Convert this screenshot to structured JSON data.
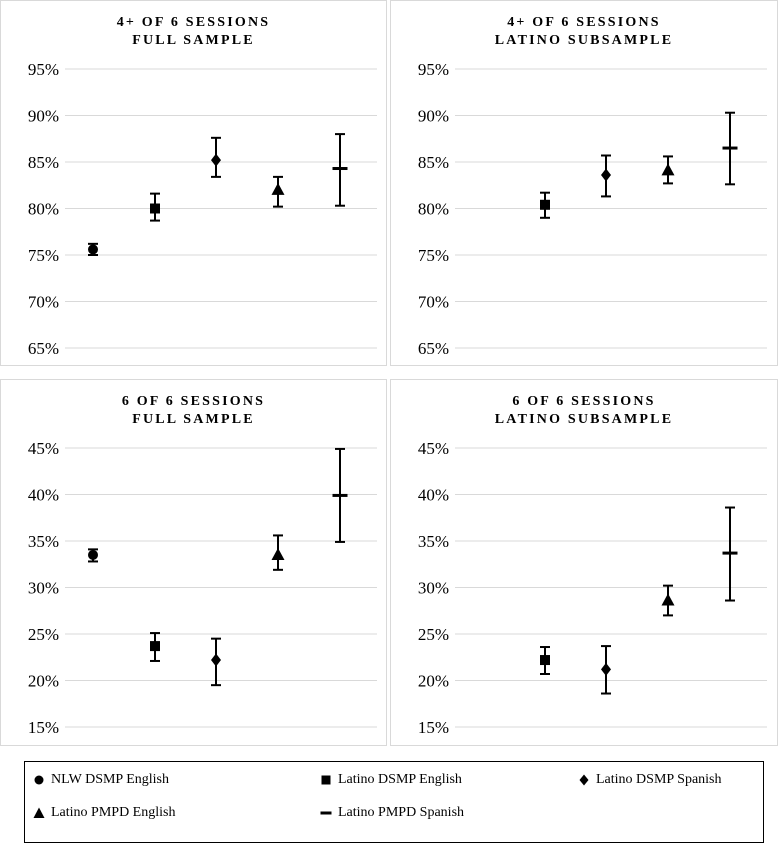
{
  "series_names": [
    "NLW DSMP English",
    "Latino DSMP English",
    "Latino DSMP Spanish",
    "Latino PMPD English",
    "Latino PMPD Spanish"
  ],
  "marker_shapes": [
    "circle",
    "square",
    "diamond",
    "triangle",
    "dash"
  ],
  "colors": {
    "marker": "#000000",
    "grid": "#d9d9d9",
    "border": "#d9d9d9",
    "legend_border": "#000000"
  },
  "chart_data": [
    {
      "type": "scatter",
      "title_line1": "4+ OF 6 SESSIONS",
      "title_line2": "FULL SAMPLE",
      "ylim": [
        65,
        95
      ],
      "yticks": [
        "95%",
        "90%",
        "85%",
        "80%",
        "75%",
        "70%",
        "65%"
      ],
      "ytick_values": [
        95,
        90,
        85,
        80,
        75,
        70,
        65
      ],
      "points": [
        {
          "series": "NLW DSMP English",
          "value": 75.6,
          "low": 75.0,
          "high": 76.2
        },
        {
          "series": "Latino DSMP English",
          "value": 80.0,
          "low": 78.7,
          "high": 81.6
        },
        {
          "series": "Latino DSMP Spanish",
          "value": 85.2,
          "low": 83.4,
          "high": 87.6
        },
        {
          "series": "Latino PMPD English",
          "value": 82.0,
          "low": 80.2,
          "high": 83.4
        },
        {
          "series": "Latino PMPD Spanish",
          "value": 84.3,
          "low": 80.3,
          "high": 88.0
        }
      ]
    },
    {
      "type": "scatter",
      "title_line1": "4+ OF 6 SESSIONS",
      "title_line2": "LATINO SUBSAMPLE",
      "ylim": [
        65,
        95
      ],
      "yticks": [
        "95%",
        "90%",
        "85%",
        "80%",
        "75%",
        "70%",
        "65%"
      ],
      "ytick_values": [
        95,
        90,
        85,
        80,
        75,
        70,
        65
      ],
      "points": [
        {
          "series": "Latino DSMP English",
          "value": 80.4,
          "low": 79.0,
          "high": 81.7
        },
        {
          "series": "Latino DSMP Spanish",
          "value": 83.6,
          "low": 81.3,
          "high": 85.7
        },
        {
          "series": "Latino PMPD English",
          "value": 84.1,
          "low": 82.7,
          "high": 85.6
        },
        {
          "series": "Latino PMPD Spanish",
          "value": 86.5,
          "low": 82.6,
          "high": 90.3
        }
      ]
    },
    {
      "type": "scatter",
      "title_line1": "6 OF 6 SESSIONS",
      "title_line2": "FULL SAMPLE",
      "ylim": [
        15,
        45
      ],
      "yticks": [
        "45%",
        "40%",
        "35%",
        "30%",
        "25%",
        "20%",
        "15%"
      ],
      "ytick_values": [
        45,
        40,
        35,
        30,
        25,
        20,
        15
      ],
      "points": [
        {
          "series": "NLW DSMP English",
          "value": 33.5,
          "low": 32.8,
          "high": 34.1
        },
        {
          "series": "Latino DSMP English",
          "value": 23.7,
          "low": 22.1,
          "high": 25.1
        },
        {
          "series": "Latino DSMP Spanish",
          "value": 22.2,
          "low": 19.5,
          "high": 24.5
        },
        {
          "series": "Latino PMPD English",
          "value": 33.5,
          "low": 31.9,
          "high": 35.6
        },
        {
          "series": "Latino PMPD Spanish",
          "value": 39.9,
          "low": 34.9,
          "high": 44.9
        }
      ]
    },
    {
      "type": "scatter",
      "title_line1": "6 OF 6 SESSIONS",
      "title_line2": "LATINO SUBSAMPLE",
      "ylim": [
        15,
        45
      ],
      "yticks": [
        "45%",
        "40%",
        "35%",
        "30%",
        "25%",
        "20%",
        "15%"
      ],
      "ytick_values": [
        45,
        40,
        35,
        30,
        25,
        20,
        15
      ],
      "points": [
        {
          "series": "Latino DSMP English",
          "value": 22.2,
          "low": 20.7,
          "high": 23.6
        },
        {
          "series": "Latino DSMP Spanish",
          "value": 21.2,
          "low": 18.6,
          "high": 23.7
        },
        {
          "series": "Latino PMPD English",
          "value": 28.6,
          "low": 27.0,
          "high": 30.2
        },
        {
          "series": "Latino PMPD Spanish",
          "value": 33.7,
          "low": 28.6,
          "high": 38.6
        }
      ]
    }
  ]
}
